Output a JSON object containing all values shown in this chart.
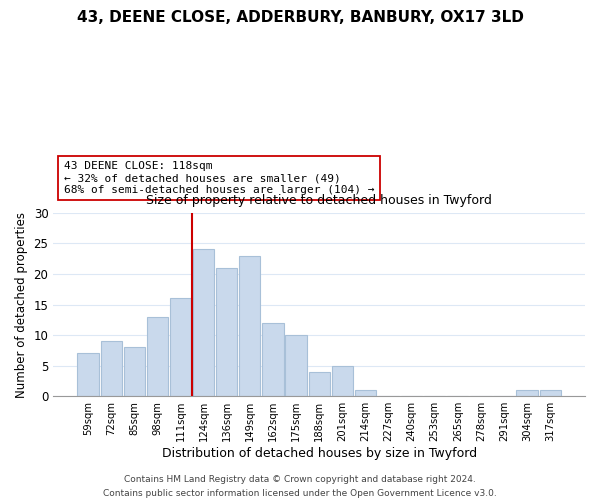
{
  "title": "43, DEENE CLOSE, ADDERBURY, BANBURY, OX17 3LD",
  "subtitle": "Size of property relative to detached houses in Twyford",
  "xlabel": "Distribution of detached houses by size in Twyford",
  "ylabel": "Number of detached properties",
  "bin_labels": [
    "59sqm",
    "72sqm",
    "85sqm",
    "98sqm",
    "111sqm",
    "124sqm",
    "136sqm",
    "149sqm",
    "162sqm",
    "175sqm",
    "188sqm",
    "201sqm",
    "214sqm",
    "227sqm",
    "240sqm",
    "253sqm",
    "265sqm",
    "278sqm",
    "291sqm",
    "304sqm",
    "317sqm"
  ],
  "bar_heights": [
    7,
    9,
    8,
    13,
    16,
    24,
    21,
    23,
    12,
    10,
    4,
    5,
    1,
    0,
    0,
    0,
    0,
    0,
    0,
    1,
    1
  ],
  "bar_color": "#c9d9ec",
  "bar_edgecolor": "#a8c0d8",
  "vline_color": "#cc0000",
  "vline_x_index": 4.5,
  "annotation_box_text": "43 DEENE CLOSE: 118sqm\n← 32% of detached houses are smaller (49)\n68% of semi-detached houses are larger (104) →",
  "annotation_box_edgecolor": "#cc0000",
  "annotation_box_facecolor": "#ffffff",
  "ylim": [
    0,
    30
  ],
  "yticks": [
    0,
    5,
    10,
    15,
    20,
    25,
    30
  ],
  "footer": "Contains HM Land Registry data © Crown copyright and database right 2024.\nContains public sector information licensed under the Open Government Licence v3.0.",
  "background_color": "#ffffff",
  "grid_color": "#dde8f5"
}
